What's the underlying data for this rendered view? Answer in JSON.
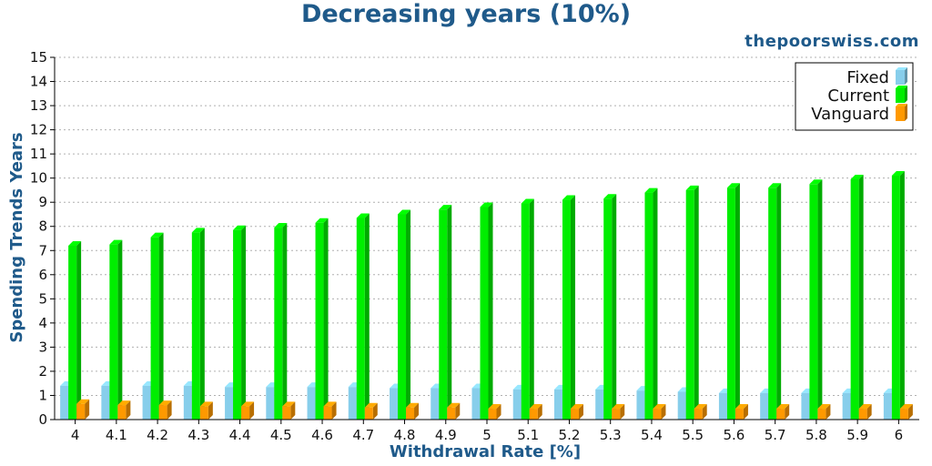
{
  "chart_data": {
    "type": "bar",
    "title": "Decreasing years (10%)",
    "subtitle": "thepoorswiss.com",
    "xlabel": "Withdrawal Rate [%]",
    "ylabel": "Spending Trends Years",
    "ylim": [
      0,
      15
    ],
    "yticks": [
      "0",
      "1",
      "2",
      "3",
      "4",
      "5",
      "6",
      "7",
      "8",
      "9",
      "10",
      "11",
      "12",
      "13",
      "14",
      "15"
    ],
    "grid": true,
    "legend_position": "top-right",
    "categories": [
      "4",
      "4.1",
      "4.2",
      "4.3",
      "4.4",
      "4.5",
      "4.6",
      "4.7",
      "4.8",
      "4.9",
      "5",
      "5.1",
      "5.2",
      "5.3",
      "5.4",
      "5.5",
      "5.6",
      "5.7",
      "5.8",
      "5.9",
      "6"
    ],
    "series": [
      {
        "name": "Fixed",
        "color": "#87ceeb",
        "values": [
          1.4,
          1.4,
          1.4,
          1.4,
          1.35,
          1.35,
          1.35,
          1.35,
          1.3,
          1.3,
          1.3,
          1.25,
          1.25,
          1.25,
          1.2,
          1.15,
          1.1,
          1.1,
          1.1,
          1.1,
          1.1
        ]
      },
      {
        "name": "Current",
        "color": "#00ee00",
        "values": [
          7.2,
          7.25,
          7.55,
          7.75,
          7.85,
          7.95,
          8.15,
          8.35,
          8.5,
          8.7,
          8.8,
          8.95,
          9.1,
          9.15,
          9.4,
          9.5,
          9.6,
          9.6,
          9.75,
          9.95,
          10.1
        ]
      },
      {
        "name": "Vanguard",
        "color": "#ff9900",
        "values": [
          0.65,
          0.6,
          0.6,
          0.55,
          0.55,
          0.55,
          0.55,
          0.5,
          0.5,
          0.5,
          0.45,
          0.45,
          0.45,
          0.45,
          0.45,
          0.45,
          0.45,
          0.45,
          0.45,
          0.45,
          0.45
        ]
      }
    ]
  }
}
